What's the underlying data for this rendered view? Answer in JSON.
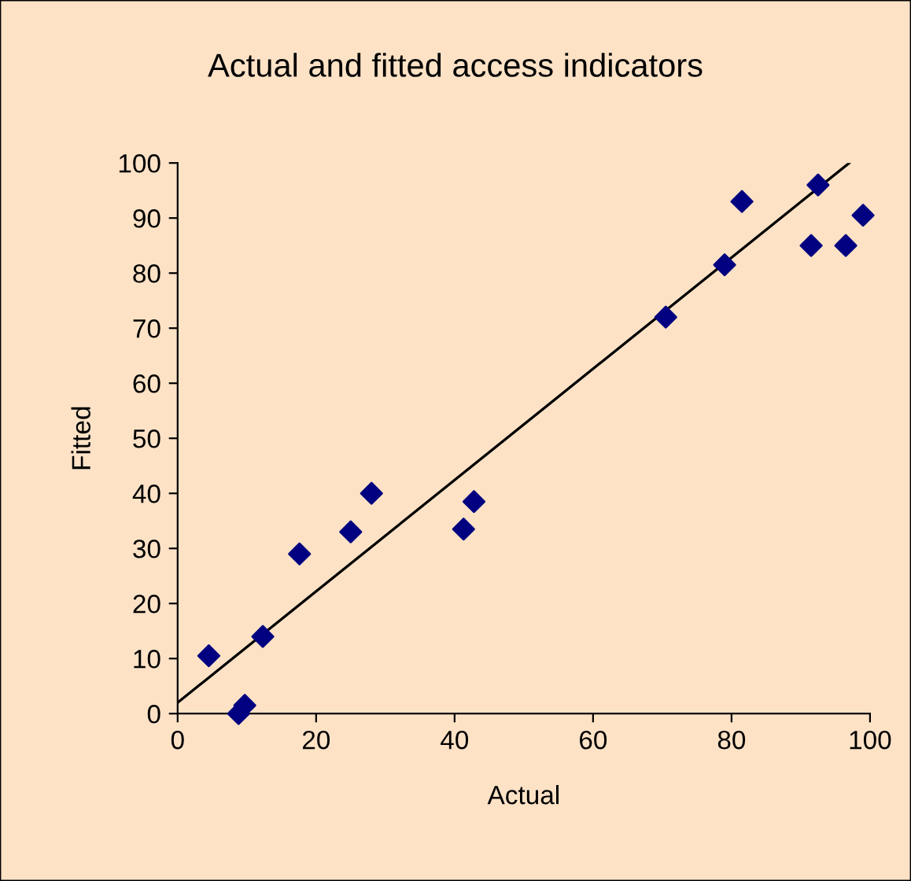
{
  "chart_data": {
    "type": "scatter",
    "title": "Actual and fitted access indicators",
    "xlabel": "Actual",
    "ylabel": "Fitted",
    "xlim": [
      0,
      100
    ],
    "ylim": [
      0,
      100
    ],
    "xticks": [
      0,
      20,
      40,
      60,
      80,
      100
    ],
    "yticks": [
      0,
      10,
      20,
      30,
      40,
      50,
      60,
      70,
      80,
      90,
      100
    ],
    "grid": false,
    "legend": false,
    "series": [
      {
        "marker": "diamond",
        "color": "#000080",
        "x": [
          4.5,
          8.8,
          9.7,
          12.3,
          17.6,
          25,
          28,
          41.3,
          42.8,
          70.5,
          79,
          81.5,
          91.5,
          92.5,
          96.5,
          99
        ],
        "values": [
          10.5,
          0,
          1.5,
          14,
          29,
          33,
          40,
          33.5,
          38.5,
          72,
          81.5,
          93,
          85,
          96,
          85,
          90.5
        ]
      },
      {
        "type": "line",
        "marker": "none",
        "color": "#000000",
        "x": [
          0,
          97
        ],
        "values": [
          2,
          100
        ]
      }
    ]
  }
}
